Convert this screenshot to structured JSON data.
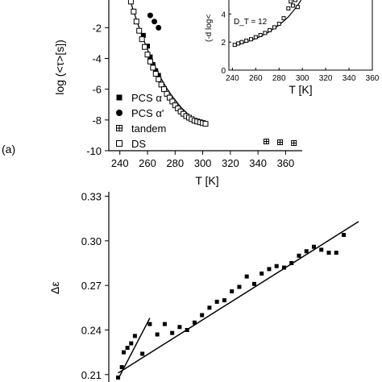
{
  "chart_data": [
    {
      "type": "scatter",
      "panel_label": "(a)",
      "xlabel": "T [K]",
      "ylabel": "log (<τ>[s])",
      "xlim": [
        232,
        372
      ],
      "ylim": [
        -10,
        -0.2
      ],
      "xticks": [
        "240",
        "260",
        "280",
        "300",
        "320",
        "340",
        "360"
      ],
      "yticks": [
        "-10",
        "-8",
        "-6",
        "-4",
        "-2"
      ],
      "legend": {
        "placement": "bottom-left",
        "entries": [
          "PCS α",
          "PCS α'",
          "tandem",
          "DS"
        ]
      },
      "series": [
        {
          "name": "PCS α",
          "marker": "filled-square",
          "x": [
            257,
            260,
            262,
            264,
            266,
            268
          ],
          "y": [
            -2.5,
            -3.2,
            -3.9,
            -4.4,
            -4.8,
            -5.1
          ]
        },
        {
          "name": "PCS α'",
          "marker": "filled-circle",
          "x": [
            262,
            265,
            268
          ],
          "y": [
            -1.2,
            -1.6,
            -2.0
          ]
        },
        {
          "name": "tandem",
          "marker": "crossed-square",
          "x": [
            346,
            356,
            366
          ],
          "y": [
            -9.4,
            -9.45,
            -9.5
          ]
        },
        {
          "name": "DS",
          "marker": "open-square",
          "x": [
            248,
            250,
            252,
            254,
            256,
            258,
            260,
            262,
            264,
            266,
            268,
            270,
            272,
            274,
            276,
            278,
            280,
            282,
            284,
            286,
            288,
            290,
            292,
            294,
            296,
            298,
            300,
            302
          ],
          "y": [
            -0.3,
            -0.95,
            -1.6,
            -2.2,
            -2.75,
            -3.25,
            -3.75,
            -4.2,
            -4.6,
            -5.0,
            -5.35,
            -5.7,
            -6.0,
            -6.3,
            -6.55,
            -6.8,
            -7.05,
            -7.25,
            -7.45,
            -7.6,
            -7.75,
            -7.85,
            -7.95,
            -8.05,
            -8.1,
            -8.15,
            -8.2,
            -8.25
          ]
        }
      ],
      "fit_curve": {
        "x": [
          247,
          250,
          253,
          256,
          259,
          262,
          265,
          268,
          271,
          274,
          277,
          280,
          283,
          286,
          289,
          292,
          295,
          298,
          302
        ],
        "y": [
          -0.1,
          -0.95,
          -1.75,
          -2.5,
          -3.2,
          -3.85,
          -4.45,
          -5.0,
          -5.5,
          -5.95,
          -6.35,
          -6.7,
          -7.05,
          -7.35,
          -7.6,
          -7.82,
          -8.0,
          -8.12,
          -8.25
        ]
      }
    },
    {
      "type": "scatter",
      "role": "inset",
      "xlabel": "T [K]",
      "ylabel": "(-d log<",
      "xlim": [
        237,
        360
      ],
      "ylim": [
        0,
        5
      ],
      "xticks": [
        "240",
        "260",
        "280",
        "300",
        "320",
        "340",
        "360"
      ],
      "yticks": [
        "0",
        "2",
        "4"
      ],
      "annotation": "D_T = 12",
      "series": [
        {
          "marker": "open-square",
          "x": [
            242,
            245,
            248,
            252,
            256,
            260,
            264,
            268,
            272,
            276,
            280,
            284,
            288,
            290,
            292,
            294,
            296
          ],
          "y": [
            1.8,
            1.9,
            2.0,
            2.1,
            2.2,
            2.35,
            2.5,
            2.65,
            2.85,
            3.05,
            3.3,
            3.7,
            4.4,
            4.9,
            4.6,
            5.0,
            4.5
          ]
        }
      ],
      "fit_curve": {
        "x": [
          241,
          250,
          260,
          270,
          280,
          288,
          295,
          299
        ],
        "y": [
          1.7,
          1.95,
          2.25,
          2.65,
          3.2,
          3.8,
          4.5,
          5.0
        ]
      }
    },
    {
      "type": "scatter",
      "xlabel": "",
      "ylabel": "Δε",
      "xlim": [
        238,
        372
      ],
      "ylim": [
        0.205,
        0.333
      ],
      "yticks": [
        "0.21",
        "0.24",
        "0.27",
        "0.30",
        "0.33"
      ],
      "series": [
        {
          "marker": "filled-square",
          "x": [
            243,
            245,
            246,
            248,
            250,
            252,
            256,
            260,
            264,
            268,
            272,
            276,
            280,
            284,
            288,
            292,
            296,
            300,
            304,
            308,
            312,
            316,
            320,
            324,
            328,
            332,
            336,
            340,
            344,
            348,
            352,
            356,
            360,
            364
          ],
          "y": [
            0.208,
            0.215,
            0.225,
            0.228,
            0.231,
            0.236,
            0.224,
            0.244,
            0.237,
            0.244,
            0.238,
            0.242,
            0.24,
            0.245,
            0.25,
            0.255,
            0.259,
            0.26,
            0.266,
            0.269,
            0.276,
            0.271,
            0.278,
            0.281,
            0.283,
            0.282,
            0.285,
            0.29,
            0.293,
            0.296,
            0.294,
            0.292,
            0.292,
            0.304
          ]
        }
      ],
      "fit_lines": [
        {
          "x": [
            243,
            260
          ],
          "y": [
            0.207,
            0.248
          ]
        },
        {
          "x": [
            243,
            372
          ],
          "y": [
            0.211,
            0.313
          ]
        }
      ]
    }
  ]
}
